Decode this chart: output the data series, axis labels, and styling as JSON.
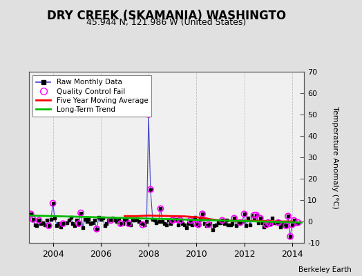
{
  "title": "DRY CREEK (SKAMANIA) WASHINGTO",
  "subtitle": "45.944 N, 121.986 W (United States)",
  "ylabel_right": "Temperature Anomaly (°C)",
  "credit": "Berkeley Earth",
  "ylim": [
    -10,
    70
  ],
  "xlim": [
    2003.0,
    2014.5
  ],
  "yticks": [
    -10,
    0,
    10,
    20,
    30,
    40,
    50,
    60,
    70
  ],
  "xticks": [
    2004,
    2006,
    2008,
    2010,
    2012,
    2014
  ],
  "bg_color": "#e0e0e0",
  "plot_bg_color": "#f0f0f0",
  "raw_color": "#4444cc",
  "raw_marker_color": "#000000",
  "qc_color": "magenta",
  "moving_avg_color": "#ff0000",
  "trend_color": "#00bb00",
  "raw_x": [
    2003.08,
    2003.17,
    2003.25,
    2003.33,
    2003.42,
    2003.5,
    2003.58,
    2003.67,
    2003.75,
    2003.83,
    2003.92,
    2004.0,
    2004.08,
    2004.17,
    2004.25,
    2004.33,
    2004.42,
    2004.5,
    2004.58,
    2004.67,
    2004.75,
    2004.83,
    2004.92,
    2005.0,
    2005.08,
    2005.17,
    2005.25,
    2005.33,
    2005.42,
    2005.5,
    2005.58,
    2005.67,
    2005.75,
    2005.83,
    2005.92,
    2006.0,
    2006.08,
    2006.17,
    2006.25,
    2006.33,
    2006.42,
    2006.5,
    2006.58,
    2006.67,
    2006.75,
    2006.83,
    2006.92,
    2007.0,
    2007.08,
    2007.17,
    2007.25,
    2007.33,
    2007.42,
    2007.5,
    2007.58,
    2007.67,
    2007.75,
    2007.83,
    2007.92,
    2008.0,
    2008.08,
    2008.17,
    2008.25,
    2008.33,
    2008.42,
    2008.5,
    2008.58,
    2008.67,
    2008.75,
    2008.83,
    2008.92,
    2009.0,
    2009.08,
    2009.17,
    2009.25,
    2009.33,
    2009.42,
    2009.5,
    2009.58,
    2009.67,
    2009.75,
    2009.83,
    2009.92,
    2010.0,
    2010.08,
    2010.17,
    2010.25,
    2010.33,
    2010.42,
    2010.5,
    2010.58,
    2010.67,
    2010.75,
    2010.83,
    2010.92,
    2011.0,
    2011.08,
    2011.17,
    2011.25,
    2011.33,
    2011.42,
    2011.5,
    2011.58,
    2011.67,
    2011.75,
    2011.83,
    2011.92,
    2012.0,
    2012.08,
    2012.17,
    2012.25,
    2012.33,
    2012.42,
    2012.5,
    2012.58,
    2012.67,
    2012.75,
    2012.83,
    2012.92,
    2013.0,
    2013.08,
    2013.17,
    2013.25,
    2013.33,
    2013.42,
    2013.5,
    2013.58,
    2013.67,
    2013.75,
    2013.83,
    2013.92,
    2014.0,
    2014.08,
    2014.17,
    2014.25
  ],
  "raw_y": [
    3.5,
    1.0,
    -1.5,
    -2.0,
    0.5,
    -1.0,
    -0.5,
    -1.5,
    0.5,
    -2.0,
    1.0,
    8.5,
    1.5,
    -2.0,
    -1.0,
    -2.5,
    -1.0,
    -0.5,
    -0.5,
    0.5,
    2.0,
    -1.0,
    -2.0,
    0.5,
    -1.0,
    4.0,
    -3.0,
    1.0,
    0.0,
    1.0,
    -1.0,
    -0.5,
    0.5,
    -3.5,
    2.0,
    1.0,
    1.5,
    -2.0,
    -1.0,
    0.5,
    0.5,
    1.5,
    0.5,
    0.0,
    1.0,
    -1.0,
    -1.0,
    1.0,
    0.5,
    -1.0,
    -1.5,
    0.5,
    0.5,
    1.0,
    0.0,
    -0.5,
    -1.0,
    -1.5,
    0.0,
    50.0,
    15.0,
    1.0,
    0.5,
    -0.5,
    0.0,
    6.0,
    0.0,
    -1.0,
    -1.5,
    0.5,
    -1.0,
    0.5,
    0.5,
    1.0,
    -1.5,
    0.5,
    -1.0,
    -1.5,
    -3.0,
    -1.0,
    0.5,
    -1.5,
    2.0,
    -1.0,
    -1.5,
    1.0,
    3.5,
    -1.0,
    -2.0,
    -1.5,
    -1.0,
    -4.0,
    -2.0,
    -1.5,
    -0.5,
    -0.5,
    0.5,
    -1.0,
    0.5,
    -1.5,
    -1.5,
    -1.0,
    1.5,
    -2.0,
    -0.5,
    -0.5,
    0.0,
    3.5,
    -2.0,
    1.5,
    -1.5,
    3.0,
    1.5,
    3.0,
    -0.5,
    1.5,
    -0.5,
    -2.5,
    -1.5,
    -0.5,
    -1.0,
    1.5,
    -0.5,
    -0.5,
    0.0,
    -2.5,
    -1.5,
    -1.0,
    -2.0,
    2.5,
    -7.0,
    -1.5,
    0.5,
    -1.0,
    -0.5
  ],
  "qc_x": [
    2003.08,
    2003.17,
    2003.42,
    2003.83,
    2004.0,
    2004.42,
    2005.08,
    2005.17,
    2005.83,
    2006.42,
    2006.83,
    2007.17,
    2007.75,
    2008.0,
    2008.08,
    2008.5,
    2009.0,
    2009.17,
    2009.33,
    2009.75,
    2010.0,
    2010.08,
    2010.25,
    2010.5,
    2011.08,
    2011.58,
    2011.83,
    2012.0,
    2012.42,
    2012.5,
    2012.67,
    2012.92,
    2013.0,
    2013.08,
    2013.42,
    2013.75,
    2013.83,
    2013.92,
    2014.0,
    2014.08,
    2014.25
  ],
  "qc_y": [
    3.5,
    1.0,
    0.5,
    -2.0,
    8.5,
    -1.0,
    -1.0,
    4.0,
    -3.5,
    0.5,
    -1.0,
    -1.0,
    -1.5,
    50.0,
    15.0,
    6.0,
    0.5,
    1.0,
    0.5,
    0.5,
    -1.0,
    -1.5,
    3.5,
    -1.5,
    0.5,
    1.5,
    -0.5,
    3.5,
    3.0,
    3.0,
    1.5,
    -1.5,
    -0.5,
    -1.0,
    -0.5,
    -2.0,
    2.5,
    -7.0,
    -1.5,
    0.5,
    -0.5
  ],
  "moving_avg_x": [
    2007.0,
    2007.5,
    2008.0,
    2009.0,
    2009.5,
    2010.0,
    2010.4,
    2010.6,
    2011.0,
    2011.5,
    2012.0,
    2012.5,
    2013.0,
    2013.5,
    2014.0
  ],
  "moving_avg_y": [
    2.5,
    2.5,
    2.8,
    2.5,
    2.4,
    2.0,
    1.5,
    1.0,
    0.5,
    0.3,
    0.3,
    0.3,
    0.1,
    0.0,
    0.0
  ],
  "trend_x": [
    2003.0,
    2014.4
  ],
  "trend_y": [
    2.8,
    -0.5
  ]
}
